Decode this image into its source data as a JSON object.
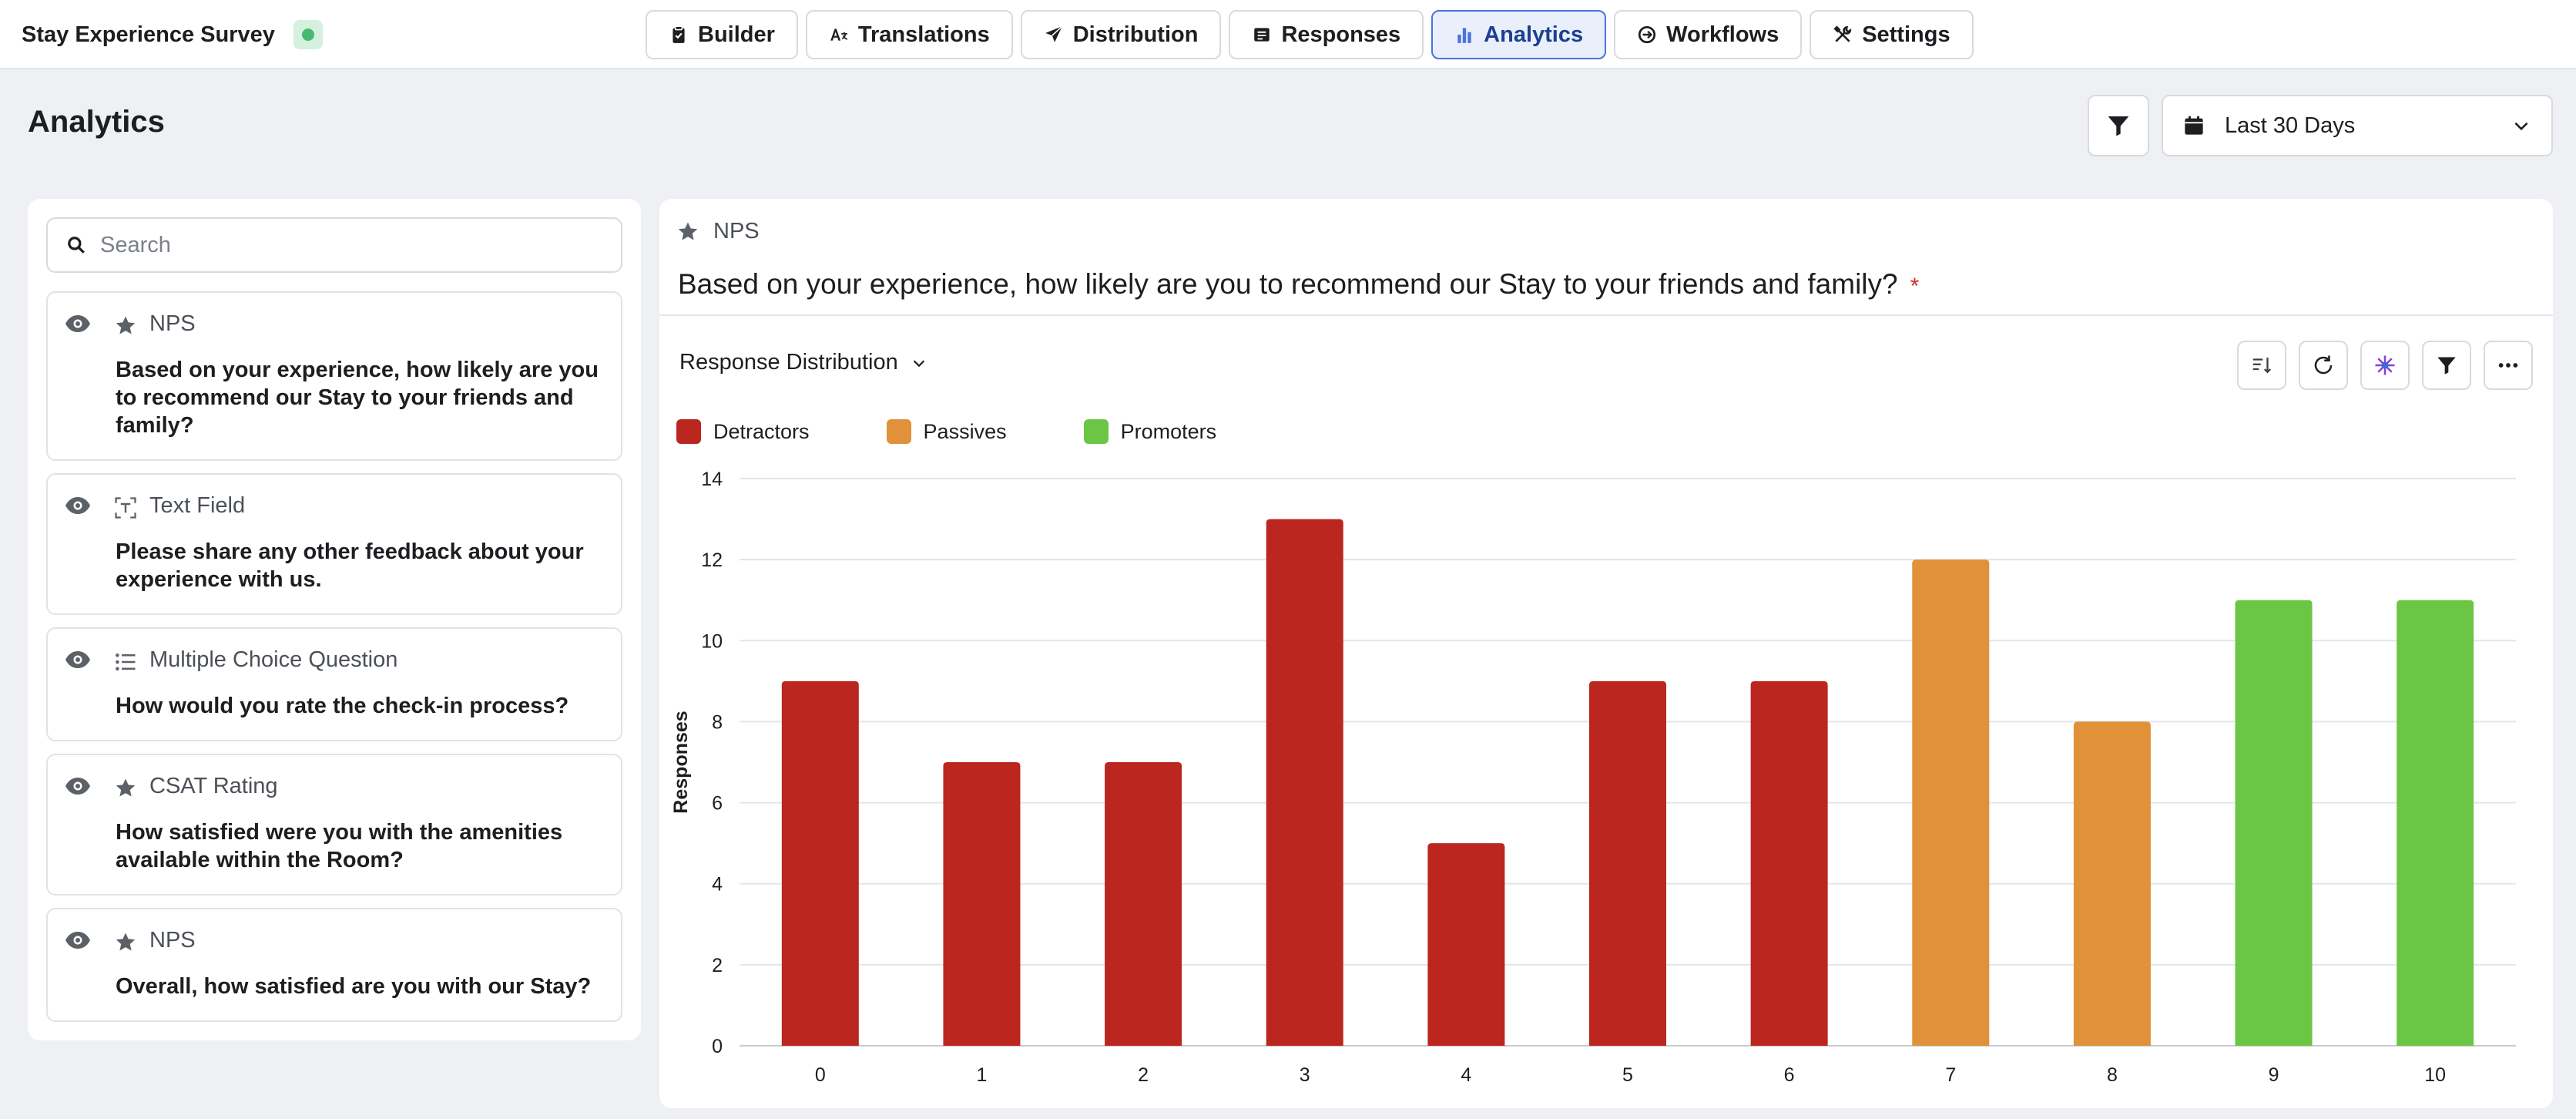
{
  "app": {
    "title": "Stay Experience Survey",
    "status_color": "#47b972"
  },
  "tabs": [
    {
      "label": "Builder",
      "icon": "clipboard-icon",
      "active": false
    },
    {
      "label": "Translations",
      "icon": "translate-icon",
      "active": false
    },
    {
      "label": "Distribution",
      "icon": "send-icon",
      "active": false
    },
    {
      "label": "Responses",
      "icon": "responses-icon",
      "active": false
    },
    {
      "label": "Analytics",
      "icon": "bar-chart-icon",
      "active": true
    },
    {
      "label": "Workflows",
      "icon": "workflow-icon",
      "active": false
    },
    {
      "label": "Settings",
      "icon": "settings-icon",
      "active": false
    }
  ],
  "page": {
    "title": "Analytics",
    "date_range": "Last 30 Days"
  },
  "search": {
    "placeholder": "Search"
  },
  "questions": [
    {
      "type": "NPS",
      "icon": "star-icon",
      "text": "Based on your experience, how likely are you to recommend our Stay to your friends and family?"
    },
    {
      "type": "Text Field",
      "icon": "text-field-icon",
      "text": "Please share any other feedback about your experience with us."
    },
    {
      "type": "Multiple Choice Question",
      "icon": "list-icon",
      "text": "How would you rate the check-in process?"
    },
    {
      "type": "CSAT Rating",
      "icon": "star-icon",
      "text": "How satisfied were you with the amenities available within the Room?"
    },
    {
      "type": "NPS",
      "icon": "star-icon",
      "text": "Overall, how satisfied are you with our Stay?"
    }
  ],
  "detail": {
    "type": "NPS",
    "question": "Based on your experience, how likely are you to recommend our Stay to your friends and family?",
    "required_mark": "*",
    "view_label": "Response Distribution"
  },
  "colors": {
    "detractors": "#bb261e",
    "passives": "#e0913a",
    "promoters": "#6cc645",
    "accent": "#4a73d9"
  },
  "chart_data": {
    "type": "bar",
    "categories": [
      "0",
      "1",
      "2",
      "3",
      "4",
      "5",
      "6",
      "7",
      "8",
      "9",
      "10"
    ],
    "values": [
      9,
      7,
      7,
      13,
      5,
      9,
      9,
      12,
      8,
      11,
      11
    ],
    "groups": [
      "Detractors",
      "Detractors",
      "Detractors",
      "Detractors",
      "Detractors",
      "Detractors",
      "Detractors",
      "Passives",
      "Passives",
      "Promoters",
      "Promoters"
    ],
    "legend": [
      "Detractors",
      "Passives",
      "Promoters"
    ],
    "ylabel": "Responses",
    "xlabel": "",
    "ylim": [
      0,
      14
    ],
    "yticks": [
      0,
      2,
      4,
      6,
      8,
      10,
      12,
      14
    ],
    "grid": true,
    "legend_position": "top-left"
  }
}
